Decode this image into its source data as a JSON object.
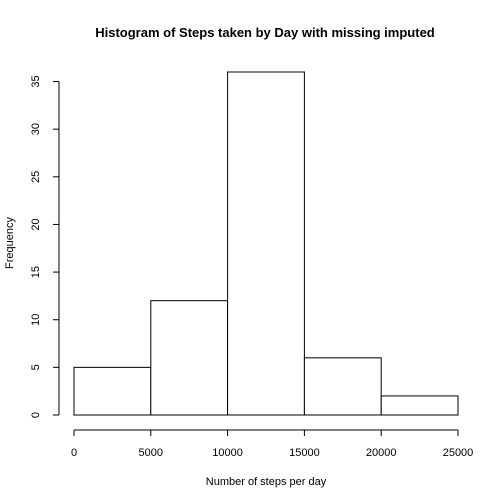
{
  "chart_data": {
    "type": "bar",
    "title": "Histogram of Steps taken by Day with missing imputed",
    "xlabel": "Number of steps per day",
    "ylabel": "Frequency",
    "bins": [
      {
        "from": 0,
        "to": 5000,
        "count": 5
      },
      {
        "from": 5000,
        "to": 10000,
        "count": 12
      },
      {
        "from": 10000,
        "to": 15000,
        "count": 36
      },
      {
        "from": 15000,
        "to": 20000,
        "count": 6
      },
      {
        "from": 20000,
        "to": 25000,
        "count": 2
      }
    ],
    "xlim": [
      0,
      25000
    ],
    "ylim": [
      0,
      36
    ],
    "x_ticks": [
      "0",
      "5000",
      "10000",
      "15000",
      "20000",
      "25000"
    ],
    "y_ticks": [
      "0",
      "5",
      "10",
      "15",
      "20",
      "25",
      "30",
      "35"
    ],
    "grid": false,
    "bar_fill": "#ffffff",
    "bar_stroke": "#000000"
  }
}
